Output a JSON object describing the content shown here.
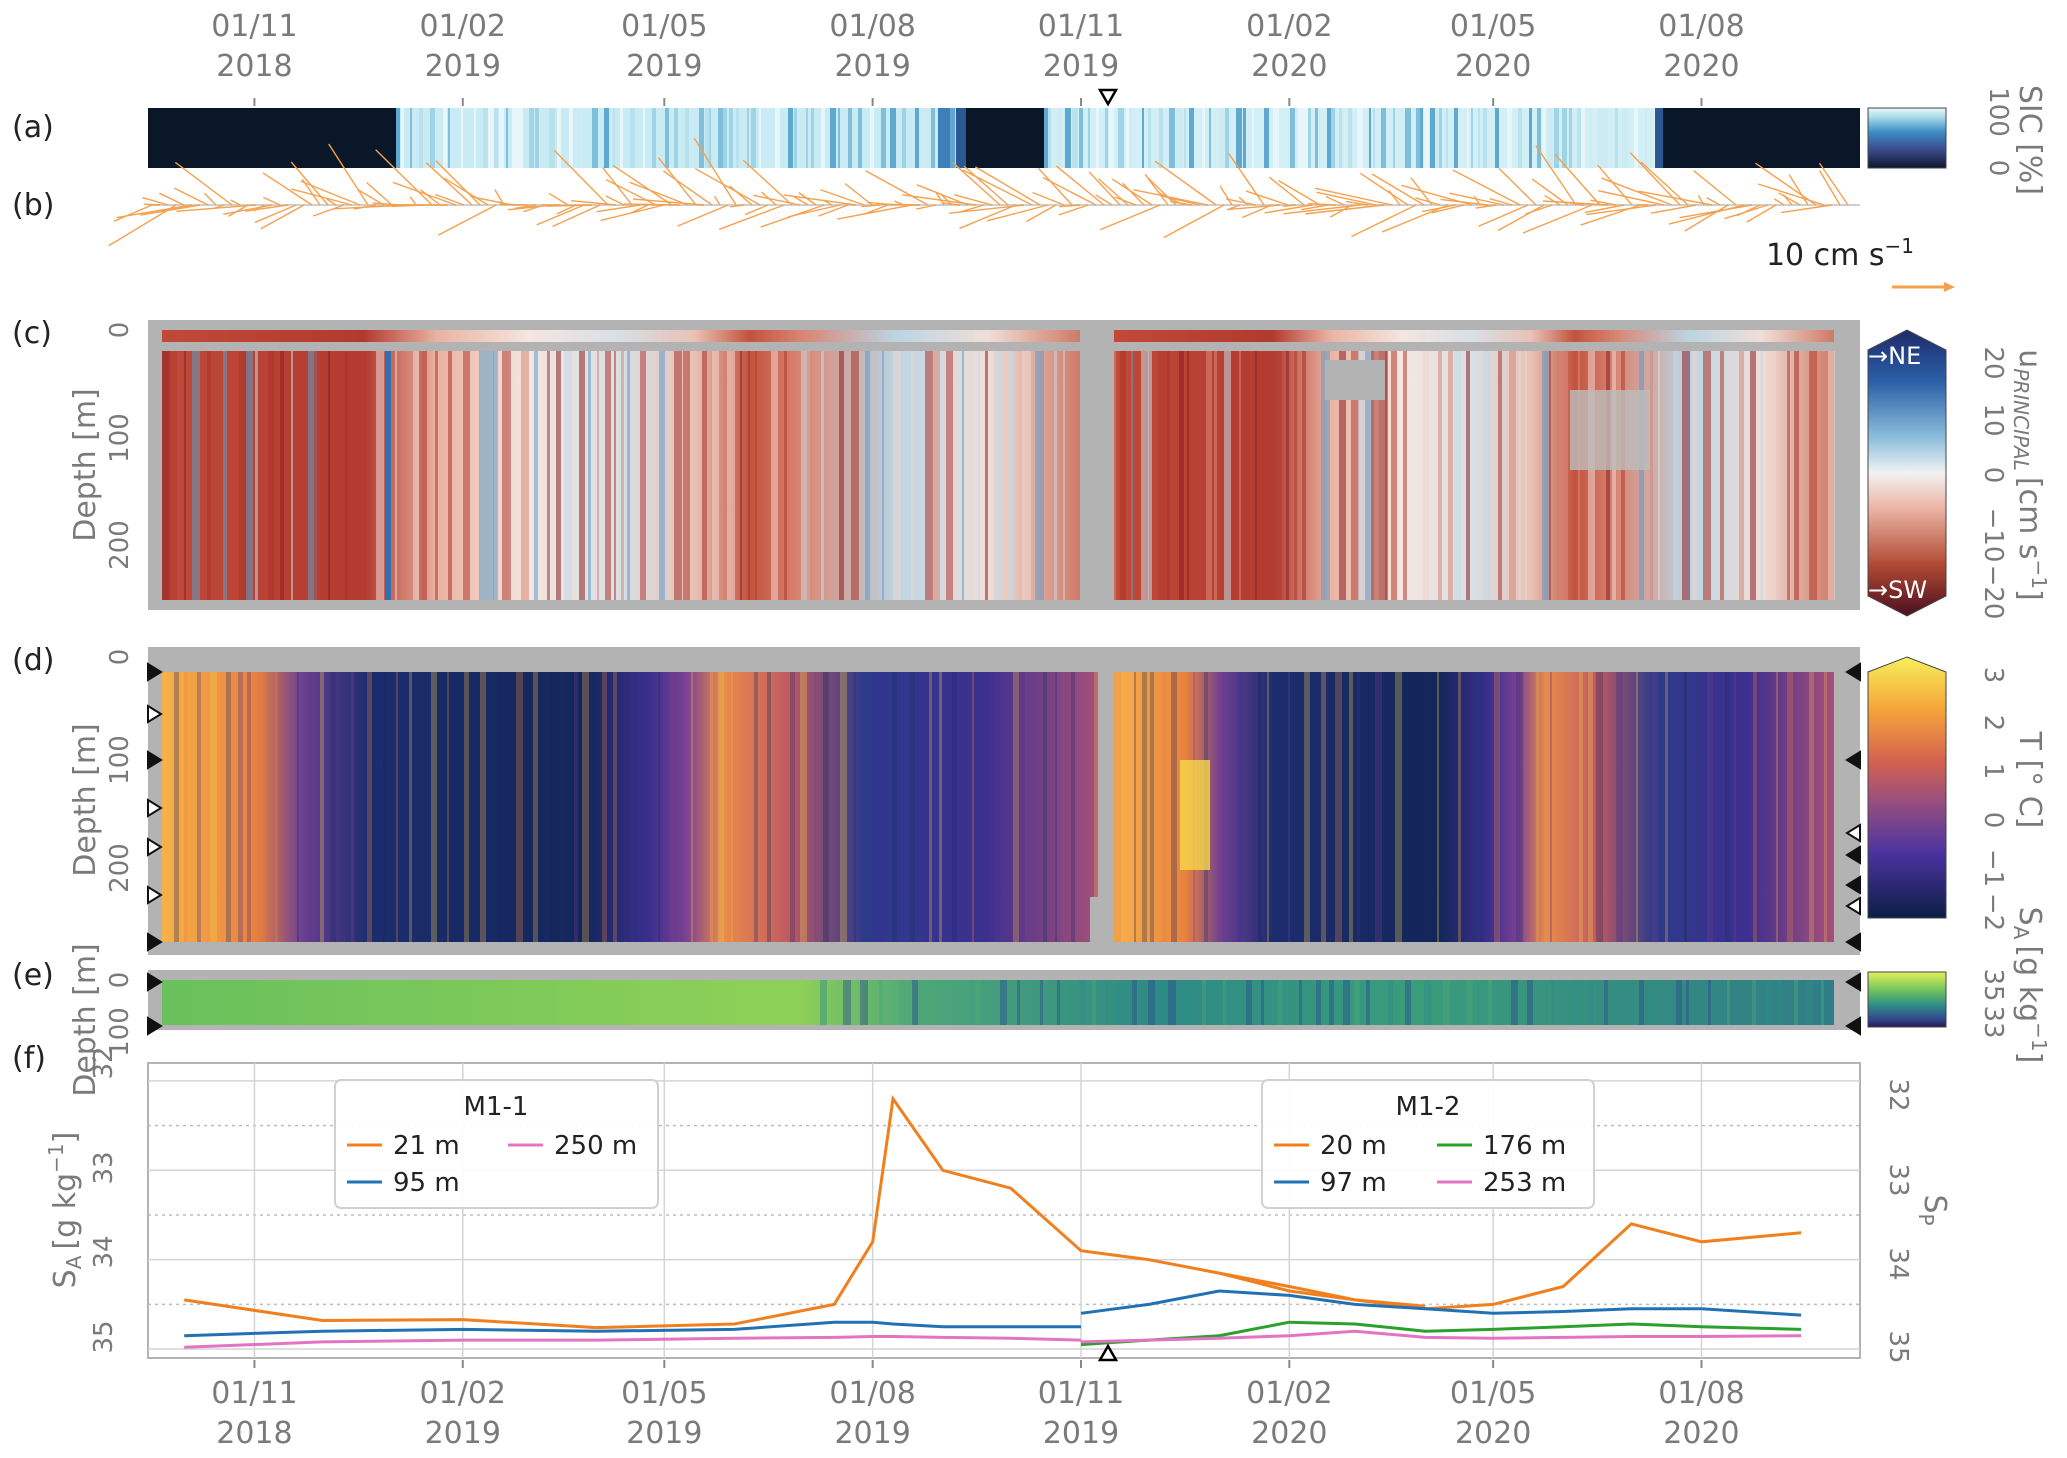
{
  "figure": {
    "panel_labels": [
      "(a)",
      "(b)",
      "(c)",
      "(d)",
      "(e)",
      "(f)"
    ],
    "time_ticks": [
      {
        "date": "01/11",
        "year": "2018"
      },
      {
        "date": "01/02",
        "year": "2019"
      },
      {
        "date": "01/05",
        "year": "2019"
      },
      {
        "date": "01/08",
        "year": "2019"
      },
      {
        "date": "01/11",
        "year": "2019"
      },
      {
        "date": "01/02",
        "year": "2020"
      },
      {
        "date": "01/05",
        "year": "2020"
      },
      {
        "date": "01/08",
        "year": "2020"
      }
    ],
    "colors": {
      "axis_text": "#7a7a7a",
      "missing": "#b3b3b3",
      "arrows": "#f6a04d",
      "c21": "#f07f1e",
      "c95": "#2271b5",
      "c250": "#e374c3",
      "c176": "#2ca02c"
    }
  },
  "panel_a": {
    "colorbar_label": "SIC [%]",
    "colorbar_ticks": [
      "100",
      "0"
    ]
  },
  "panel_b": {
    "scale_label": "10 cm s",
    "scale_exponent": "−1"
  },
  "panel_c": {
    "ylabel": "Depth [m]",
    "yticks": [
      "0",
      "100",
      "200"
    ],
    "colorbar_label_main": "u",
    "colorbar_label_sub": "PRINCIPAL",
    "colorbar_label_unit": "[cm s",
    "colorbar_label_exp": "−1",
    "colorbar_label_close": "]",
    "colorbar_ticks": [
      "20",
      "10",
      "0",
      "−10",
      "−20"
    ],
    "ne_label": "→NE",
    "sw_label": "→SW"
  },
  "panel_d": {
    "ylabel": "Depth [m]",
    "yticks": [
      "0",
      "100",
      "200"
    ],
    "colorbar_label": "T [° C]",
    "colorbar_ticks": [
      "3",
      "2",
      "1",
      "0",
      "−1",
      "−2"
    ]
  },
  "panel_e": {
    "ylabel": "Depth [m]",
    "yticks": [
      "0",
      "100"
    ],
    "colorbar_label_main": "S",
    "colorbar_label_sub": "A",
    "colorbar_label_unit": "[g kg",
    "colorbar_label_exp": "−1",
    "colorbar_label_close": "]",
    "colorbar_ticks": [
      "35",
      "33"
    ]
  },
  "panel_f": {
    "ylabel_left_main": "S",
    "ylabel_left_sub": "A",
    "ylabel_left_unit": "[g kg",
    "ylabel_left_exp": "−1",
    "ylabel_left_close": "]",
    "ylabel_right_main": "S",
    "ylabel_right_sub": "P",
    "yticks_left": [
      "32",
      "33",
      "34",
      "35"
    ],
    "yticks_right": [
      "32",
      "33",
      "34",
      "35"
    ],
    "legend_m11": {
      "title": "M1-1",
      "entries": [
        "21 m",
        "95 m",
        "250 m"
      ]
    },
    "legend_m12": {
      "title": "M1-2",
      "entries": [
        "20 m",
        "97 m",
        "176 m",
        "253 m"
      ]
    }
  },
  "chart_data": {
    "type": "line",
    "title": "",
    "xlabel": "",
    "ylabel": "SA [g kg−1]",
    "y_inverted": true,
    "ylim": [
      35.1,
      31.8
    ],
    "x": [
      "2018-10-01",
      "2018-12-01",
      "2019-02-01",
      "2019-04-01",
      "2019-06-01",
      "2019-07-15",
      "2019-08-01",
      "2019-08-10",
      "2019-09-01",
      "2019-10-01",
      "2019-11-01",
      "2019-12-01",
      "2020-01-01",
      "2020-02-01",
      "2020-03-01",
      "2020-04-01",
      "2020-05-01",
      "2020-06-01",
      "2020-07-01",
      "2020-08-01",
      "2020-09-14"
    ],
    "series": [
      {
        "name": "21 m",
        "legend": "M1-1",
        "values": [
          34.45,
          34.68,
          34.67,
          34.76,
          34.72,
          34.5,
          33.8,
          32.2,
          33.0,
          33.2,
          33.9,
          34.0,
          34.15,
          34.35,
          34.45,
          34.52,
          null,
          null,
          null,
          null,
          null
        ]
      },
      {
        "name": "20 m",
        "legend": "M1-2",
        "values": [
          null,
          null,
          null,
          null,
          null,
          null,
          null,
          null,
          null,
          null,
          null,
          null,
          34.15,
          34.3,
          34.45,
          34.55,
          34.5,
          34.3,
          33.6,
          33.8,
          33.7
        ]
      },
      {
        "name": "95 m",
        "legend": "M1-1",
        "values": [
          34.85,
          34.8,
          34.78,
          34.8,
          34.78,
          34.7,
          34.7,
          34.72,
          34.75,
          34.75,
          34.75,
          null,
          null,
          null,
          null,
          null,
          null,
          null,
          null,
          null,
          null
        ]
      },
      {
        "name": "97 m",
        "legend": "M1-2",
        "values": [
          null,
          null,
          null,
          null,
          null,
          null,
          null,
          null,
          null,
          null,
          34.6,
          34.5,
          34.35,
          34.4,
          34.5,
          34.55,
          34.6,
          34.58,
          34.55,
          34.55,
          34.62
        ]
      },
      {
        "name": "176 m",
        "legend": "M1-2",
        "values": [
          null,
          null,
          null,
          null,
          null,
          null,
          null,
          null,
          null,
          null,
          34.95,
          34.9,
          34.85,
          34.7,
          34.72,
          34.8,
          34.78,
          34.75,
          34.72,
          34.75,
          34.78
        ]
      },
      {
        "name": "250 m",
        "legend": "M1-1",
        "values": [
          34.98,
          34.92,
          34.9,
          34.9,
          34.88,
          34.87,
          34.86,
          34.86,
          34.87,
          34.88,
          34.9,
          null,
          null,
          null,
          null,
          null,
          null,
          null,
          null,
          null,
          null
        ]
      },
      {
        "name": "253 m",
        "legend": "M1-2",
        "values": [
          null,
          null,
          null,
          null,
          null,
          null,
          null,
          null,
          null,
          null,
          34.92,
          34.9,
          34.88,
          34.85,
          34.8,
          34.87,
          34.88,
          34.87,
          34.86,
          34.86,
          34.85
        ]
      }
    ]
  }
}
